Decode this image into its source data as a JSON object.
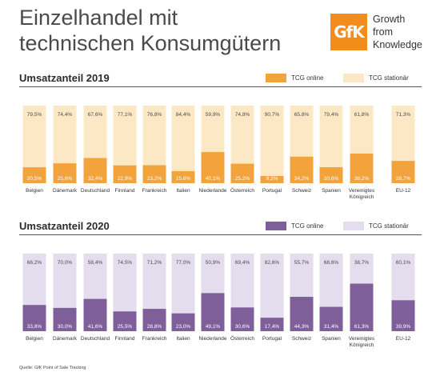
{
  "header": {
    "title_line1": "Einzelhandel mit",
    "title_line2": "technischen Konsumgütern",
    "logo_text": "GfK",
    "tagline_line1": "Growth",
    "tagline_line2": "from",
    "tagline_line3": "Knowledge"
  },
  "legend": {
    "online": "TCG online",
    "stationary": "TCG stationär"
  },
  "source": "Quelle: GfK Point of Sale Tracking",
  "colors": {
    "brand": "#f28c1a",
    "online_2019": "#f2a33c",
    "stationary_2019": "#fde8c6",
    "online_2020": "#7f5f9a",
    "stationary_2020": "#e4dded"
  },
  "chart_data": [
    {
      "type": "bar",
      "stacked": true,
      "title": "Umsatzanteil 2019",
      "categories": [
        "Belgien",
        "Dänemark",
        "Deutschland",
        "Finnland",
        "Frankreich",
        "Italien",
        "Niederlande",
        "Österreich",
        "Portugal",
        "Schweiz",
        "Spanien",
        "Vereinigtes Königreich",
        "EU-12"
      ],
      "series": [
        {
          "name": "TCG online",
          "values": [
            "20,5%",
            "25,6%",
            "32,4%",
            "22,9%",
            "23,2%",
            "15,6%",
            "40,1%",
            "25,2%",
            "9,3%",
            "34,2%",
            "20,6%",
            "38,2%",
            "28,7%"
          ]
        },
        {
          "name": "TCG stationär",
          "values": [
            "79,5%",
            "74,4%",
            "67,6%",
            "77,1%",
            "76,8%",
            "84,4%",
            "59,9%",
            "74,8%",
            "90,7%",
            "65,8%",
            "79,4%",
            "61,8%",
            "71,3%"
          ]
        }
      ],
      "ylim": [
        0,
        100
      ],
      "legend_position": "top-right"
    },
    {
      "type": "bar",
      "stacked": true,
      "title": "Umsatzanteil 2020",
      "categories": [
        "Belgien",
        "Dänemark",
        "Deutschland",
        "Finnland",
        "Frankreich",
        "Italien",
        "Niederlande",
        "Österreich",
        "Portugal",
        "Schweiz",
        "Spanien",
        "Vereinigtes Königreich",
        "EU-12"
      ],
      "series": [
        {
          "name": "TCG online",
          "values": [
            "33,8%",
            "30,0%",
            "41,6%",
            "25,5%",
            "28,8%",
            "23,0%",
            "49,1%",
            "30,6%",
            "17,4%",
            "44,3%",
            "31,4%",
            "61,3%",
            "39,9%"
          ]
        },
        {
          "name": "TCG stationär",
          "values": [
            "66,2%",
            "70,0%",
            "58,4%",
            "74,5%",
            "71,2%",
            "77,0%",
            "50,9%",
            "69,4%",
            "82,6%",
            "55,7%",
            "68,6%",
            "38,7%",
            "60,1%"
          ]
        }
      ],
      "ylim": [
        0,
        100
      ],
      "legend_position": "top-right"
    }
  ]
}
